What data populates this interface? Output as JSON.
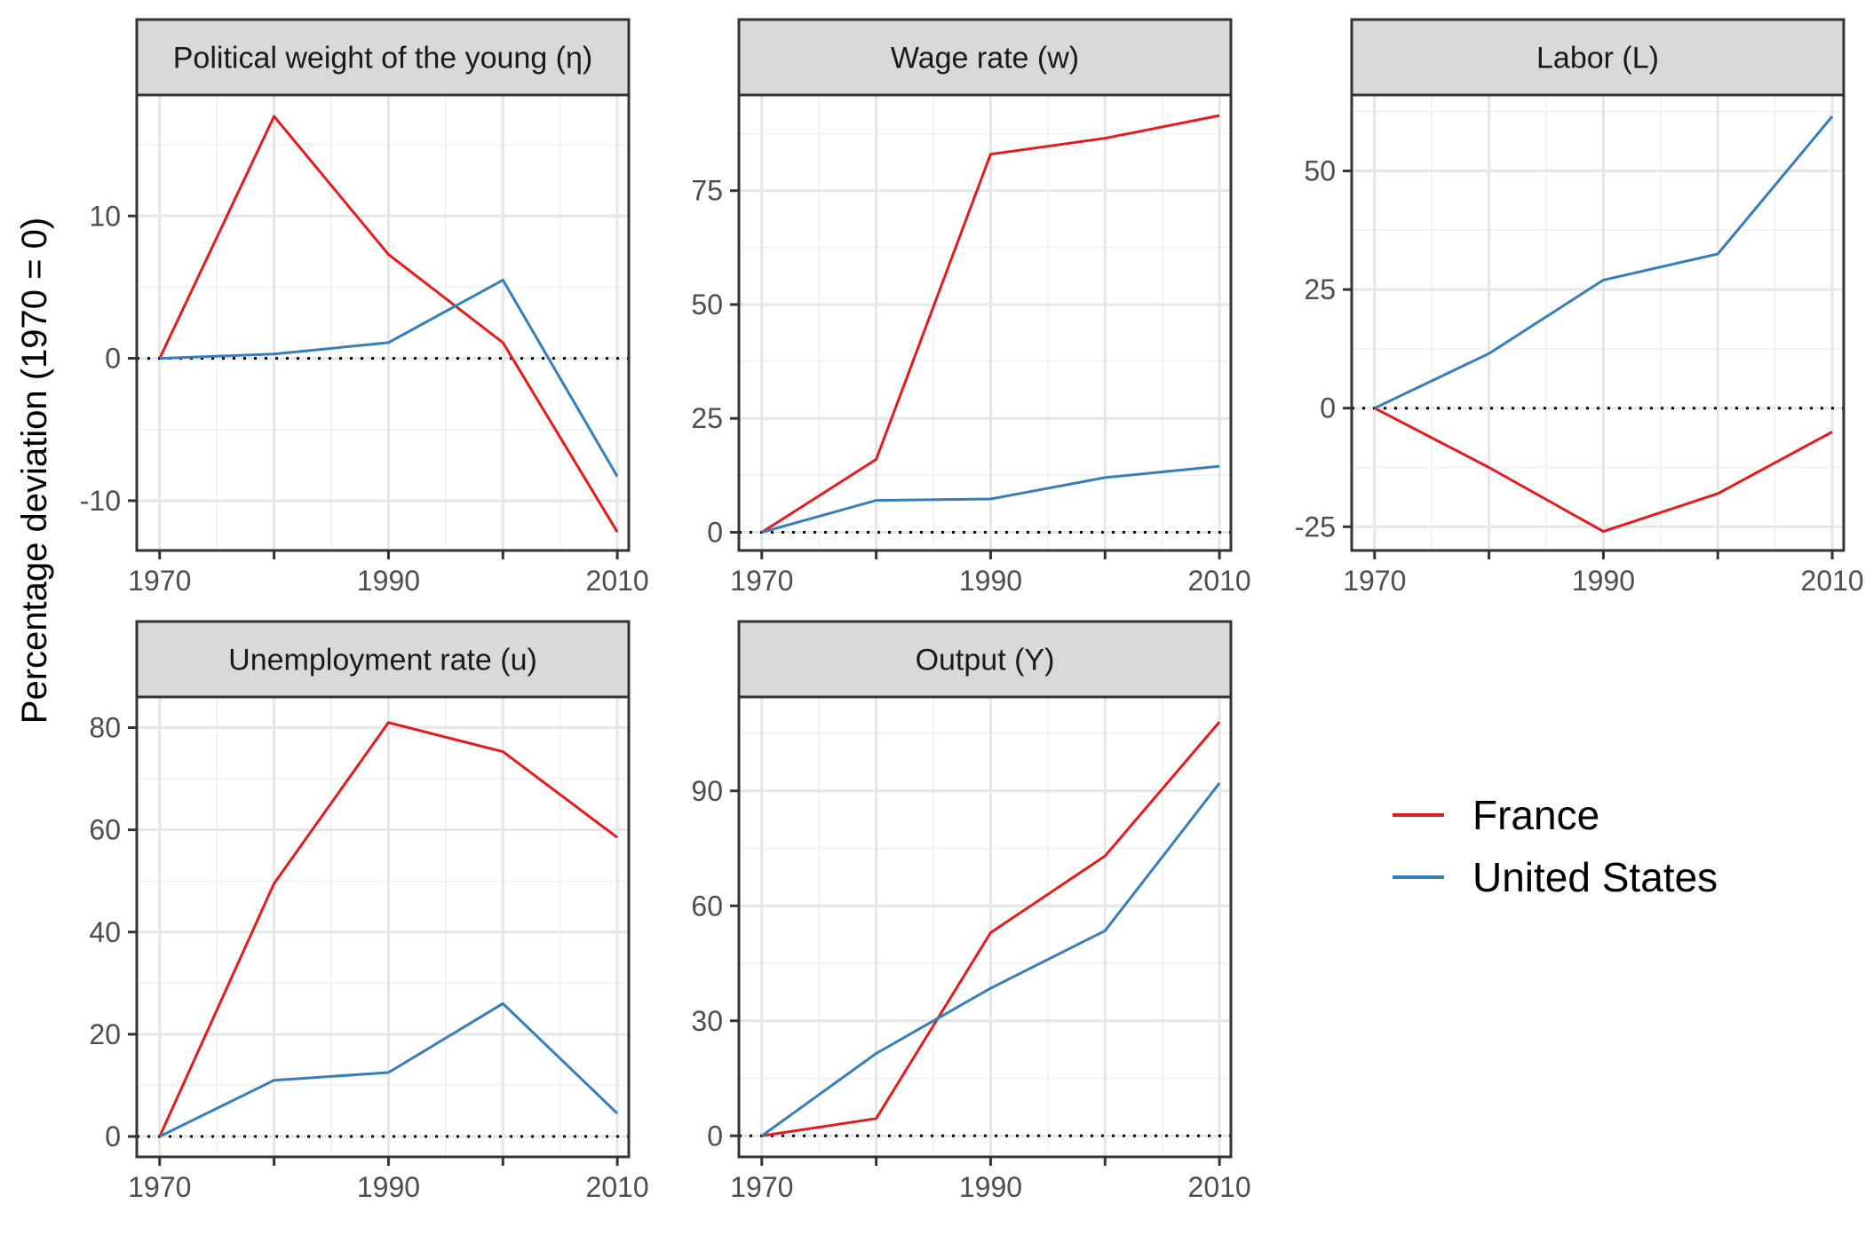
{
  "ylabel": "Percentage deviation (1970 = 0)",
  "colors": {
    "France": "#e41a1c",
    "United States": "#377eb8"
  },
  "legend": {
    "position": "right",
    "entries": [
      {
        "label": "France",
        "color": "#e41a1c"
      },
      {
        "label": "United States",
        "color": "#377eb8"
      }
    ]
  },
  "chart_data": [
    {
      "type": "line",
      "title": "Political weight of the young (η)",
      "x": [
        1970,
        1980,
        1990,
        2000,
        2010
      ],
      "xticks": [
        1970,
        1990,
        2010
      ],
      "xlim": [
        1968,
        2011
      ],
      "ylim": [
        -13.5,
        18.5
      ],
      "yticks": [
        -10,
        0,
        10
      ],
      "ytick_labels": [
        "-10",
        "0",
        "10"
      ],
      "grid": true,
      "reference_line": 0,
      "series": [
        {
          "name": "France",
          "values": [
            0,
            17,
            7.3,
            1.1,
            -12.2
          ]
        },
        {
          "name": "United States",
          "values": [
            0,
            0.3,
            1.1,
            5.5,
            -8.3
          ]
        }
      ]
    },
    {
      "type": "line",
      "title": "Wage rate (w)",
      "x": [
        1970,
        1980,
        1990,
        2000,
        2010
      ],
      "xticks": [
        1970,
        1990,
        2010
      ],
      "xlim": [
        1968,
        2011
      ],
      "ylim": [
        -4,
        96
      ],
      "yticks": [
        0,
        25,
        50,
        75
      ],
      "ytick_labels": [
        "0",
        "25",
        "50",
        "75"
      ],
      "grid": true,
      "reference_line": 0,
      "series": [
        {
          "name": "France",
          "values": [
            0,
            16,
            83,
            86.5,
            91.5
          ]
        },
        {
          "name": "United States",
          "values": [
            0,
            7,
            7.3,
            12,
            14.5
          ]
        }
      ]
    },
    {
      "type": "line",
      "title": "Labor (L)",
      "x": [
        1970,
        1980,
        1990,
        2000,
        2010
      ],
      "xticks": [
        1970,
        1990,
        2010
      ],
      "xlim": [
        1968,
        2011
      ],
      "ylim": [
        -30,
        66
      ],
      "yticks": [
        -25,
        0,
        25,
        50
      ],
      "ytick_labels": [
        "-25",
        "0",
        "25",
        "50"
      ],
      "grid": true,
      "reference_line": 0,
      "series": [
        {
          "name": "France",
          "values": [
            0,
            -12.5,
            -26,
            -18,
            -5
          ]
        },
        {
          "name": "United States",
          "values": [
            0,
            11.5,
            27,
            32.5,
            61.5
          ]
        }
      ]
    },
    {
      "type": "line",
      "title": "Unemployment rate (u)",
      "x": [
        1970,
        1980,
        1990,
        2000,
        2010
      ],
      "xticks": [
        1970,
        1990,
        2010
      ],
      "xlim": [
        1968,
        2011
      ],
      "ylim": [
        -4,
        86
      ],
      "yticks": [
        0,
        20,
        40,
        60,
        80
      ],
      "ytick_labels": [
        "0",
        "20",
        "40",
        "60",
        "80"
      ],
      "grid": true,
      "reference_line": 0,
      "series": [
        {
          "name": "France",
          "values": [
            0,
            49.5,
            81,
            75.3,
            58.5
          ]
        },
        {
          "name": "United States",
          "values": [
            0,
            11,
            12.5,
            26,
            4.5
          ]
        }
      ]
    },
    {
      "type": "line",
      "title": "Output (Y)",
      "x": [
        1970,
        1980,
        1990,
        2000,
        2010
      ],
      "xticks": [
        1970,
        1990,
        2010
      ],
      "xlim": [
        1968,
        2011
      ],
      "ylim": [
        -5.5,
        114.5
      ],
      "yticks": [
        0,
        30,
        60,
        90
      ],
      "ytick_labels": [
        "0",
        "30",
        "60",
        "90"
      ],
      "grid": true,
      "reference_line": 0,
      "series": [
        {
          "name": "France",
          "values": [
            0,
            4.5,
            53,
            73,
            108
          ]
        },
        {
          "name": "United States",
          "values": [
            0,
            21.5,
            38.5,
            53.5,
            92
          ]
        }
      ]
    }
  ]
}
